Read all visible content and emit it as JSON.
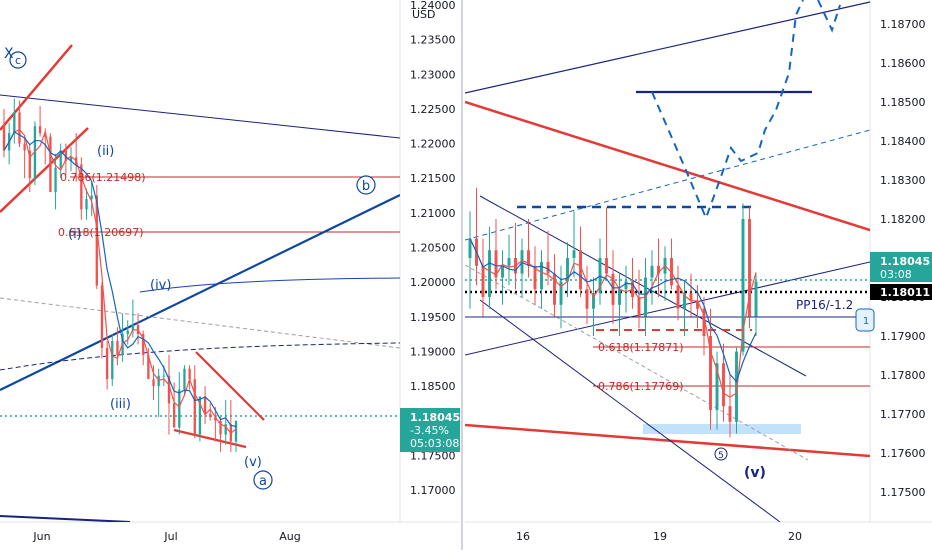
{
  "chart_data": [
    {
      "type": "candlestick",
      "pair_unit": "USD",
      "timeframe": "daily",
      "x_tick_labels": [
        "Jun",
        "Jul",
        "Aug"
      ],
      "y_tick_labels": [
        "1.24000",
        "1.23500",
        "1.23000",
        "1.22500",
        "1.22000",
        "1.21500",
        "1.21000",
        "1.20500",
        "1.20000",
        "1.19500",
        "1.19000",
        "1.18500",
        "1.18000",
        "1.17500",
        "1.17000"
      ],
      "ylim": [
        1.1655,
        1.2405
      ],
      "last_price": {
        "value": "1.18045",
        "change": "-3.45%",
        "countdown": "05:03:08"
      },
      "fib_levels": [
        {
          "ratio": "0.786",
          "price": 1.21498,
          "label": "0.786(1.21498)"
        },
        {
          "ratio": "0.618",
          "price": 1.20697,
          "label": "0.618(1.20697)"
        }
      ],
      "wave_labels": [
        "c",
        "(ii)",
        "(i)",
        "(iv)",
        "(iii)",
        "(v)",
        "a",
        "b"
      ],
      "series": [
        {
          "name": "",
          "values": [
            {
              "x": "2021-05-21",
              "o": 1.2225,
              "h": 1.225,
              "l": 1.218,
              "c": 1.219
            },
            {
              "x": "2021-05-24",
              "o": 1.219,
              "h": 1.223,
              "l": 1.217,
              "c": 1.2215
            },
            {
              "x": "2021-05-25",
              "o": 1.2215,
              "h": 1.2265,
              "l": 1.22,
              "c": 1.2245
            },
            {
              "x": "2021-05-26",
              "o": 1.2245,
              "h": 1.2262,
              "l": 1.2195,
              "c": 1.22
            },
            {
              "x": "2021-05-27",
              "o": 1.22,
              "h": 1.221,
              "l": 1.215,
              "c": 1.219
            },
            {
              "x": "2021-05-28",
              "o": 1.219,
              "h": 1.22,
              "l": 1.213,
              "c": 1.215
            },
            {
              "x": "2021-05-31",
              "o": 1.215,
              "h": 1.2232,
              "l": 1.214,
              "c": 1.2225
            },
            {
              "x": "2021-06-01",
              "o": 1.2225,
              "h": 1.2254,
              "l": 1.221,
              "c": 1.2215
            },
            {
              "x": "2021-06-02",
              "o": 1.2215,
              "h": 1.2222,
              "l": 1.217,
              "c": 1.221
            },
            {
              "x": "2021-06-03",
              "o": 1.221,
              "h": 1.2215,
              "l": 1.213,
              "c": 1.213
            },
            {
              "x": "2021-06-04",
              "o": 1.213,
              "h": 1.2185,
              "l": 1.2105,
              "c": 1.2165
            },
            {
              "x": "2021-06-07",
              "o": 1.2165,
              "h": 1.22,
              "l": 1.215,
              "c": 1.219
            },
            {
              "x": "2021-06-08",
              "o": 1.219,
              "h": 1.22,
              "l": 1.2155,
              "c": 1.2175
            },
            {
              "x": "2021-06-09",
              "o": 1.2175,
              "h": 1.2195,
              "l": 1.216,
              "c": 1.218
            },
            {
              "x": "2021-06-10",
              "o": 1.218,
              "h": 1.2215,
              "l": 1.2145,
              "c": 1.217
            },
            {
              "x": "2021-06-11",
              "o": 1.217,
              "h": 1.218,
              "l": 1.209,
              "c": 1.2105
            },
            {
              "x": "2021-06-14",
              "o": 1.2105,
              "h": 1.2135,
              "l": 1.209,
              "c": 1.212
            },
            {
              "x": "2021-06-15",
              "o": 1.212,
              "h": 1.2145,
              "l": 1.2095,
              "c": 1.2125
            },
            {
              "x": "2021-06-16",
              "o": 1.2125,
              "h": 1.214,
              "l": 1.199,
              "c": 1.1995
            },
            {
              "x": "2021-06-17",
              "o": 1.1995,
              "h": 1.2,
              "l": 1.189,
              "c": 1.1905
            },
            {
              "x": "2021-06-18",
              "o": 1.1905,
              "h": 1.1915,
              "l": 1.1845,
              "c": 1.186
            },
            {
              "x": "2021-06-21",
              "o": 1.186,
              "h": 1.1925,
              "l": 1.185,
              "c": 1.1915
            },
            {
              "x": "2021-06-22",
              "o": 1.1915,
              "h": 1.1935,
              "l": 1.188,
              "c": 1.1895
            },
            {
              "x": "2021-06-23",
              "o": 1.1895,
              "h": 1.1955,
              "l": 1.1885,
              "c": 1.1925
            },
            {
              "x": "2021-06-24",
              "o": 1.1925,
              "h": 1.1945,
              "l": 1.191,
              "c": 1.193
            },
            {
              "x": "2021-06-25",
              "o": 1.193,
              "h": 1.1975,
              "l": 1.192,
              "c": 1.1938
            },
            {
              "x": "2021-06-28",
              "o": 1.1938,
              "h": 1.1955,
              "l": 1.191,
              "c": 1.1925
            },
            {
              "x": "2021-06-29",
              "o": 1.1925,
              "h": 1.193,
              "l": 1.188,
              "c": 1.1895
            },
            {
              "x": "2021-06-30",
              "o": 1.1895,
              "h": 1.1905,
              "l": 1.186,
              "c": 1.186
            },
            {
              "x": "2021-07-01",
              "o": 1.186,
              "h": 1.188,
              "l": 1.183,
              "c": 1.185
            },
            {
              "x": "2021-07-02",
              "o": 1.185,
              "h": 1.1875,
              "l": 1.1805,
              "c": 1.1865
            },
            {
              "x": "2021-07-05",
              "o": 1.1865,
              "h": 1.188,
              "l": 1.185,
              "c": 1.1865
            },
            {
              "x": "2021-07-06",
              "o": 1.1865,
              "h": 1.1895,
              "l": 1.178,
              "c": 1.1825
            },
            {
              "x": "2021-07-07",
              "o": 1.1825,
              "h": 1.1855,
              "l": 1.18,
              "c": 1.179
            },
            {
              "x": "2021-07-08",
              "o": 1.179,
              "h": 1.187,
              "l": 1.178,
              "c": 1.1845
            },
            {
              "x": "2021-07-09",
              "o": 1.1845,
              "h": 1.188,
              "l": 1.1835,
              "c": 1.1875
            },
            {
              "x": "2021-07-12",
              "o": 1.1875,
              "h": 1.188,
              "l": 1.1845,
              "c": 1.186
            },
            {
              "x": "2021-07-13",
              "o": 1.186,
              "h": 1.188,
              "l": 1.1775,
              "c": 1.178
            },
            {
              "x": "2021-07-14",
              "o": 1.178,
              "h": 1.183,
              "l": 1.177,
              "c": 1.1835
            },
            {
              "x": "2021-07-15",
              "o": 1.1835,
              "h": 1.185,
              "l": 1.1795,
              "c": 1.181
            },
            {
              "x": "2021-07-16",
              "o": 1.181,
              "h": 1.1825,
              "l": 1.18,
              "c": 1.1805
            },
            {
              "x": "2021-07-19",
              "o": 1.1805,
              "h": 1.182,
              "l": 1.177,
              "c": 1.18
            },
            {
              "x": "2021-07-20",
              "o": 1.18,
              "h": 1.1805,
              "l": 1.1755,
              "c": 1.178
            },
            {
              "x": "2021-07-21",
              "o": 1.178,
              "h": 1.183,
              "l": 1.1765,
              "c": 1.1795
            },
            {
              "x": "2021-07-22",
              "o": 1.1795,
              "h": 1.183,
              "l": 1.1755,
              "c": 1.177
            },
            {
              "x": "2021-07-23",
              "o": 1.177,
              "h": 1.1795,
              "l": 1.1755,
              "c": 1.18
            }
          ]
        }
      ]
    },
    {
      "type": "candlestick",
      "timeframe": "intraday",
      "x_tick_labels": [
        "16",
        "19",
        "20"
      ],
      "y_tick_labels": [
        "1.18700",
        "1.18600",
        "1.18500",
        "1.18400",
        "1.18300",
        "1.18200",
        "1.18100",
        "1.18000",
        "1.17900",
        "1.17800",
        "1.17700",
        "1.17600",
        "1.17500"
      ],
      "ylim": [
        1.1744,
        1.1878
      ],
      "last_price": {
        "value": "1.18045",
        "countdown": "03:08"
      },
      "second_price": {
        "value": "1.18011"
      },
      "pivot_label": "PP16/-1.2",
      "partial_tag": "1",
      "fib_levels": [
        {
          "ratio": "0.618",
          "price": 1.17871,
          "label": "0.618(1.17871)"
        },
        {
          "ratio": "0.786",
          "price": 1.17769,
          "label": "0.786(1.17769)"
        }
      ],
      "wave_labels": [
        "5",
        "(v)"
      ],
      "series": [
        {
          "name": "",
          "values": [
            {
              "o": 1.181,
              "h": 1.1822,
              "l": 1.1797,
              "c": 1.1815
            },
            {
              "o": 1.1815,
              "h": 1.1828,
              "l": 1.1803,
              "c": 1.1808
            },
            {
              "o": 1.1808,
              "h": 1.1815,
              "l": 1.1795,
              "c": 1.18
            },
            {
              "o": 1.18,
              "h": 1.1818,
              "l": 1.1797,
              "c": 1.1812
            },
            {
              "o": 1.1812,
              "h": 1.182,
              "l": 1.1802,
              "c": 1.1805
            },
            {
              "o": 1.1805,
              "h": 1.1812,
              "l": 1.1798,
              "c": 1.1808
            },
            {
              "o": 1.1808,
              "h": 1.1816,
              "l": 1.1803,
              "c": 1.181
            },
            {
              "o": 1.181,
              "h": 1.1819,
              "l": 1.1802,
              "c": 1.1806
            },
            {
              "o": 1.1806,
              "h": 1.1815,
              "l": 1.18,
              "c": 1.1812
            },
            {
              "o": 1.1812,
              "h": 1.182,
              "l": 1.1805,
              "c": 1.1808
            },
            {
              "o": 1.1808,
              "h": 1.1813,
              "l": 1.1798,
              "c": 1.1802
            },
            {
              "o": 1.1802,
              "h": 1.1812,
              "l": 1.1797,
              "c": 1.1809
            },
            {
              "o": 1.1809,
              "h": 1.1817,
              "l": 1.1803,
              "c": 1.1806
            },
            {
              "o": 1.1806,
              "h": 1.1811,
              "l": 1.1795,
              "c": 1.1798
            },
            {
              "o": 1.1798,
              "h": 1.1808,
              "l": 1.1792,
              "c": 1.1804
            },
            {
              "o": 1.1804,
              "h": 1.1814,
              "l": 1.18,
              "c": 1.181
            },
            {
              "o": 1.181,
              "h": 1.1822,
              "l": 1.1805,
              "c": 1.1812
            },
            {
              "o": 1.1812,
              "h": 1.1818,
              "l": 1.18,
              "c": 1.1802
            },
            {
              "o": 1.1802,
              "h": 1.1808,
              "l": 1.1793,
              "c": 1.1797
            },
            {
              "o": 1.1797,
              "h": 1.1805,
              "l": 1.179,
              "c": 1.1801
            },
            {
              "o": 1.1801,
              "h": 1.1815,
              "l": 1.1798,
              "c": 1.181
            },
            {
              "o": 1.181,
              "h": 1.1823,
              "l": 1.1805,
              "c": 1.1806
            },
            {
              "o": 1.1806,
              "h": 1.1812,
              "l": 1.1793,
              "c": 1.1798
            },
            {
              "o": 1.1798,
              "h": 1.1806,
              "l": 1.179,
              "c": 1.1802
            },
            {
              "o": 1.1802,
              "h": 1.1808,
              "l": 1.1796,
              "c": 1.1804
            },
            {
              "o": 1.1804,
              "h": 1.181,
              "l": 1.1797,
              "c": 1.18
            },
            {
              "o": 1.18,
              "h": 1.1807,
              "l": 1.1792,
              "c": 1.1795
            },
            {
              "o": 1.1795,
              "h": 1.181,
              "l": 1.179,
              "c": 1.1805
            },
            {
              "o": 1.1805,
              "h": 1.1812,
              "l": 1.1798,
              "c": 1.1808
            },
            {
              "o": 1.1808,
              "h": 1.1815,
              "l": 1.18,
              "c": 1.1806
            },
            {
              "o": 1.1806,
              "h": 1.1813,
              "l": 1.1799,
              "c": 1.181
            },
            {
              "o": 1.181,
              "h": 1.1815,
              "l": 1.1802,
              "c": 1.1803
            },
            {
              "o": 1.1803,
              "h": 1.1808,
              "l": 1.1794,
              "c": 1.1797
            },
            {
              "o": 1.1797,
              "h": 1.1804,
              "l": 1.179,
              "c": 1.1801
            },
            {
              "o": 1.1801,
              "h": 1.1806,
              "l": 1.1795,
              "c": 1.1799
            },
            {
              "o": 1.1799,
              "h": 1.1803,
              "l": 1.1792,
              "c": 1.1797
            },
            {
              "o": 1.1797,
              "h": 1.18,
              "l": 1.1785,
              "c": 1.179
            },
            {
              "o": 1.179,
              "h": 1.1797,
              "l": 1.1766,
              "c": 1.1771
            },
            {
              "o": 1.1771,
              "h": 1.1786,
              "l": 1.1766,
              "c": 1.1783
            },
            {
              "o": 1.1783,
              "h": 1.1788,
              "l": 1.1768,
              "c": 1.1772
            },
            {
              "o": 1.1772,
              "h": 1.178,
              "l": 1.1764,
              "c": 1.1768
            },
            {
              "o": 1.1768,
              "h": 1.1787,
              "l": 1.1765,
              "c": 1.1786
            },
            {
              "o": 1.1786,
              "h": 1.1824,
              "l": 1.1785,
              "c": 1.182
            },
            {
              "o": 1.182,
              "h": 1.1823,
              "l": 1.1792,
              "c": 1.1795
            },
            {
              "o": 1.1795,
              "h": 1.1806,
              "l": 1.179,
              "c": 1.1804
            }
          ]
        }
      ]
    }
  ],
  "colors": {
    "up": "#26a69a",
    "down": "#ef5350",
    "trend_blue": "#0d47a1",
    "line_navy": "#1a237e",
    "fib_red": "#c62828",
    "price_tag": "#26a69a",
    "black_tag": "#000000"
  }
}
